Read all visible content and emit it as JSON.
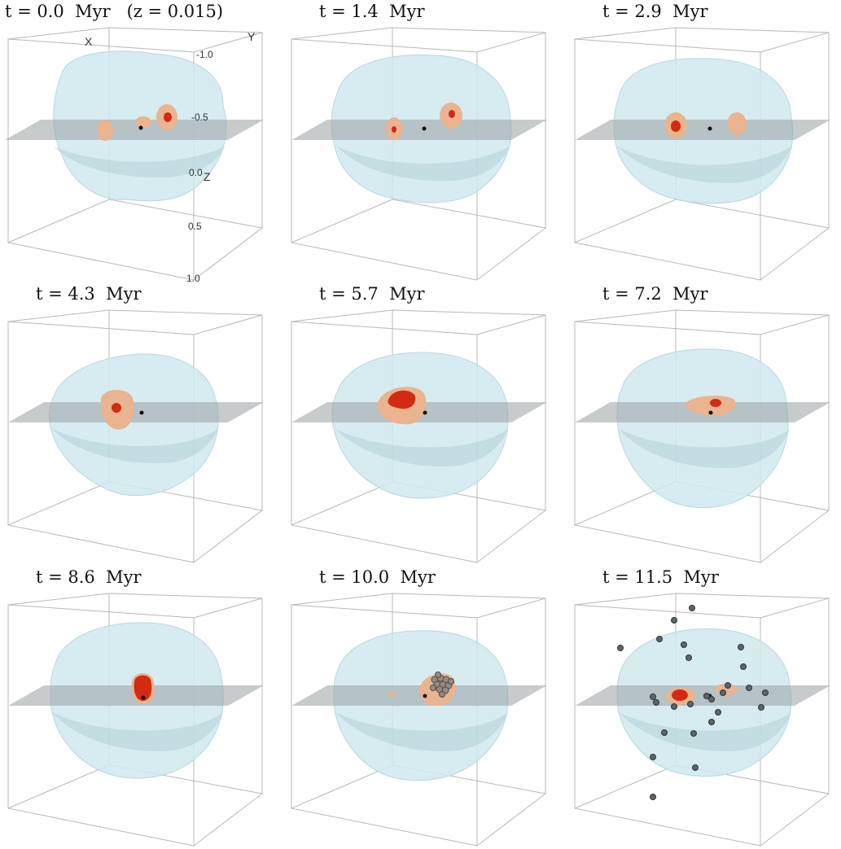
{
  "panels": [
    {
      "title": "t = 0.0  Myr   (z = 0.015)"
    },
    {
      "title": "t = 1.4  Myr"
    },
    {
      "title": "t = 2.9  Myr"
    },
    {
      "title": "t = 4.3  Myr"
    },
    {
      "title": "t = 5.7  Myr"
    },
    {
      "title": "t = 7.2  Myr"
    },
    {
      "title": "t = 8.6  Myr"
    },
    {
      "title": "t = 10.0  Myr"
    },
    {
      "title": "t = 11.5  Myr"
    }
  ],
  "axes": {
    "x_label": "X",
    "y_label": "Y",
    "z_label": "Z",
    "ticks": [
      "-1.0",
      "-0.5",
      "0.0",
      "0.5",
      "1.0"
    ]
  },
  "colors": {
    "envelope": "#cfe9ee",
    "plane": "#9aa0a2",
    "clump": "#e9b48f",
    "core": "#d42a14",
    "star": "#4f5a5e"
  }
}
